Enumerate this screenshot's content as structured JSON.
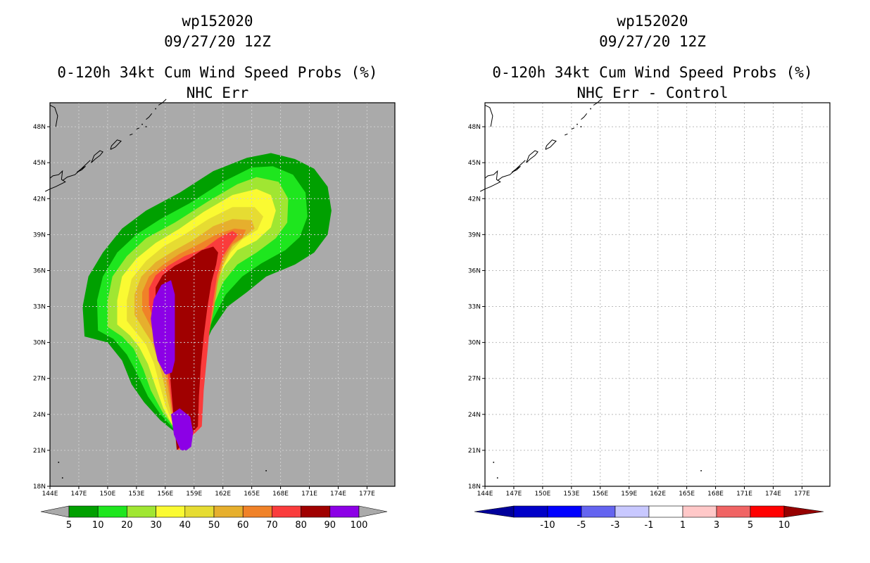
{
  "left_panel": {
    "storm_id": "wp152020",
    "datetime": "09/27/20 12Z",
    "product": "0-120h 34kt Cum Wind Speed Probs (%)",
    "variant": "NHC Err"
  },
  "right_panel": {
    "storm_id": "wp152020",
    "datetime": "09/27/20 12Z",
    "product": "0-120h 34kt Cum Wind Speed Probs (%)",
    "variant": "NHC Err - Control"
  },
  "axes": {
    "lon_labels": [
      "144E",
      "147E",
      "150E",
      "153E",
      "156E",
      "159E",
      "162E",
      "165E",
      "168E",
      "171E",
      "174E",
      "177E"
    ],
    "lat_labels": [
      "48N",
      "45N",
      "42N",
      "39N",
      "36N",
      "33N",
      "30N",
      "27N",
      "24N",
      "21N",
      "18N"
    ]
  },
  "map_colors": {
    "background_left": "#aaaaaa",
    "background_right": "#ffffff",
    "coast": "#000000",
    "grid_left": "#cfcfcf",
    "grid_right": "#bbbbbb"
  },
  "prob_scale": {
    "labels": [
      "5",
      "10",
      "20",
      "30",
      "40",
      "50",
      "60",
      "70",
      "80",
      "90",
      "100"
    ],
    "colors": [
      "#00a000",
      "#1ee61e",
      "#a0e632",
      "#fafa32",
      "#e6dc32",
      "#e6af2d",
      "#f08228",
      "#fa3c3c",
      "#a00000",
      "#8c00e6"
    ],
    "under_color": "#aaaaaa",
    "over_color": "#aaaaaa"
  },
  "diff_scale": {
    "labels": [
      "-10",
      "-5",
      "-3",
      "-1",
      "1",
      "3",
      "5",
      "10"
    ],
    "colors": [
      "#0000c8",
      "#0000ff",
      "#6464f0",
      "#c8c8ff",
      "#ffffff",
      "#ffc8c8",
      "#f06464",
      "#ff0000"
    ],
    "under_color": "#00009b",
    "over_color": "#960000"
  }
}
